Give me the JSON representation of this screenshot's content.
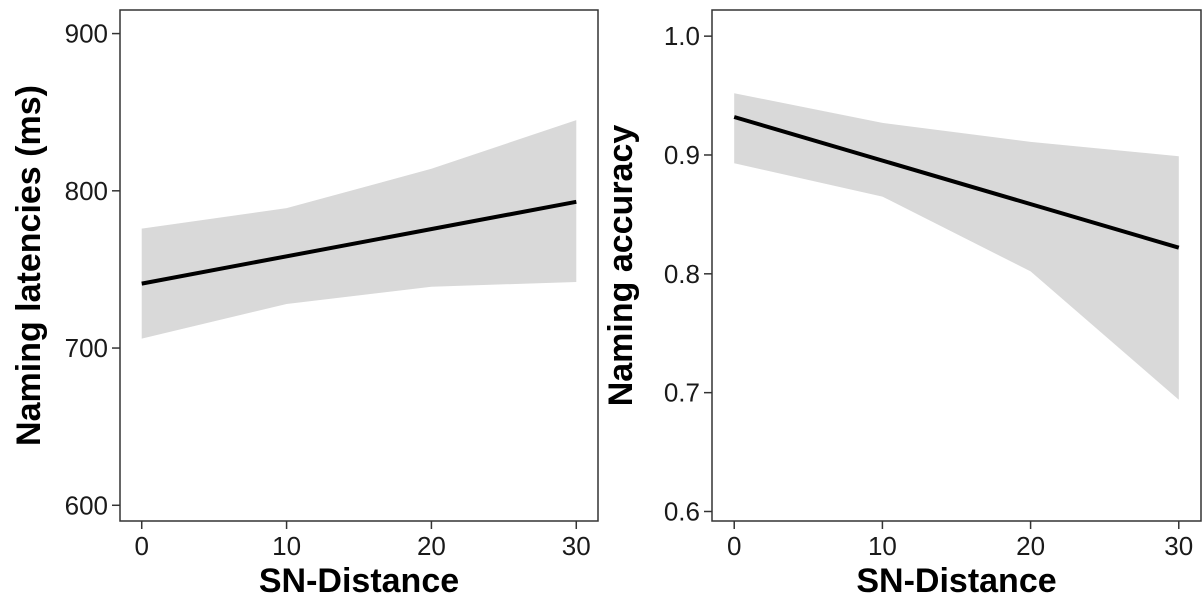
{
  "chart_data": [
    {
      "type": "line",
      "xlabel": "SN-Distance",
      "ylabel": "Naming latencies (ms)",
      "xlim": [
        -1.5,
        31.5
      ],
      "ylim": [
        590,
        915
      ],
      "x_ticks": [
        0,
        10,
        20,
        30
      ],
      "y_ticks": [
        600,
        700,
        800,
        900
      ],
      "x_tick_labels": [
        "0",
        "10",
        "20",
        "30"
      ],
      "y_tick_labels": [
        "600",
        "700",
        "800",
        "900"
      ],
      "grid": false,
      "series": [
        {
          "x": [
            0,
            30
          ],
          "y": [
            741,
            793
          ]
        }
      ],
      "confidence_band": {
        "x": [
          0,
          10,
          20,
          30
        ],
        "lower": [
          706,
          728,
          739,
          742
        ],
        "upper": [
          776,
          789,
          814,
          845
        ]
      },
      "colors": {
        "line": "#000000",
        "band": "#d9d9d9",
        "frame": "#333333"
      }
    },
    {
      "type": "line",
      "xlabel": "SN-Distance",
      "ylabel": "Naming accuracy",
      "xlim": [
        -1.5,
        31.5
      ],
      "ylim": [
        0.592,
        1.022
      ],
      "x_ticks": [
        0,
        10,
        20,
        30
      ],
      "y_ticks": [
        0.6,
        0.7,
        0.8,
        0.9,
        1.0
      ],
      "x_tick_labels": [
        "0",
        "10",
        "20",
        "30"
      ],
      "y_tick_labels": [
        "0.6",
        "0.7",
        "0.8",
        "0.9",
        "1.0"
      ],
      "grid": false,
      "series": [
        {
          "x": [
            0,
            30
          ],
          "y": [
            0.932,
            0.822
          ]
        }
      ],
      "confidence_band": {
        "x": [
          0,
          10,
          20,
          30
        ],
        "lower": [
          0.893,
          0.865,
          0.802,
          0.694
        ],
        "upper": [
          0.952,
          0.927,
          0.911,
          0.899
        ]
      },
      "colors": {
        "line": "#000000",
        "band": "#d9d9d9",
        "frame": "#333333"
      }
    }
  ]
}
